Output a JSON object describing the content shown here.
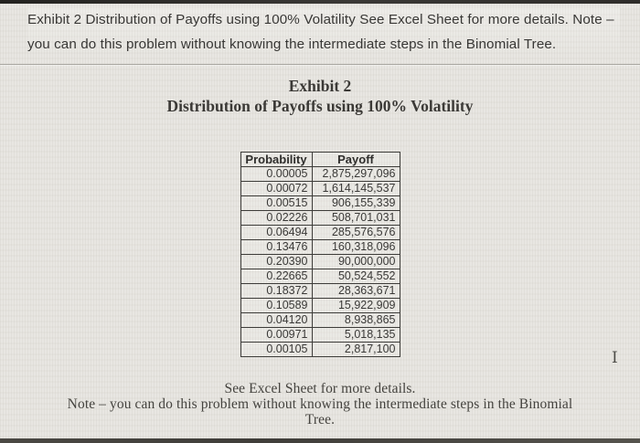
{
  "colors": {
    "page_bg": "#e7e5e0",
    "text_primary": "#3a3938",
    "table_border": "#3d3c39",
    "photo_edge_dark": "#2e2c29",
    "divider": "#a9a7a1"
  },
  "header": {
    "lines": [
      "Exhibit 2 Distribution of Payoffs using 100% Volatility See Excel Sheet for more details. Note –",
      "you can do this problem without knowing the intermediate steps in the Binomial Tree."
    ]
  },
  "document": {
    "title_line1": "Exhibit 2",
    "title_line2": "Distribution of Payoffs using 100% Volatility",
    "table": {
      "columns": [
        "Probability",
        "Payoff"
      ],
      "rows": [
        [
          "0.00005",
          "2,875,297,096"
        ],
        [
          "0.00072",
          "1,614,145,537"
        ],
        [
          "0.00515",
          "906,155,339"
        ],
        [
          "0.02226",
          "508,701,031"
        ],
        [
          "0.06494",
          "285,576,576"
        ],
        [
          "0.13476",
          "160,318,096"
        ],
        [
          "0.20390",
          "90,000,000"
        ],
        [
          "0.22665",
          "50,524,552"
        ],
        [
          "0.18372",
          "28,363,671"
        ],
        [
          "0.10589",
          "15,922,909"
        ],
        [
          "0.04120",
          "8,938,865"
        ],
        [
          "0.00971",
          "5,018,135"
        ],
        [
          "0.00105",
          "2,817,100"
        ]
      ]
    },
    "footer": {
      "lines": [
        "See Excel Sheet for more details.",
        "Note – you can do this problem without knowing the intermediate steps in the Binomial",
        "Tree."
      ]
    }
  },
  "cursor": {
    "glyph": "I",
    "name": "text-ibeam-cursor"
  }
}
